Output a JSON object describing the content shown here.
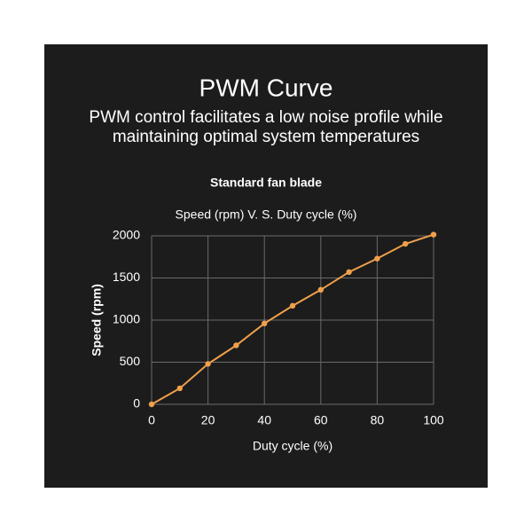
{
  "heading": "PWM Curve",
  "subheading": [
    "PWM control facilitates a low noise profile while",
    "maintaining optimal system temperatures"
  ],
  "chart_data": {
    "type": "line",
    "title": "Speed (rpm) V. S. Duty cycle (%)",
    "x_label": "Duty cycle (%)",
    "y_label": "Speed (rpm)",
    "x": [
      0,
      10,
      20,
      30,
      40,
      50,
      60,
      70,
      80,
      90,
      100
    ],
    "series": [
      {
        "name": "Standard fan blade",
        "color": "#f0a04b",
        "values": [
          0,
          190,
          480,
          700,
          960,
          1170,
          1360,
          1570,
          1730,
          1905,
          2015
        ]
      }
    ],
    "xlim": [
      0,
      100
    ],
    "xticks": [
      0,
      20,
      40,
      60,
      80,
      100
    ],
    "ylim": [
      0,
      2000
    ],
    "yticks": [
      0,
      500,
      1000,
      1500,
      2000
    ],
    "grid": true
  }
}
